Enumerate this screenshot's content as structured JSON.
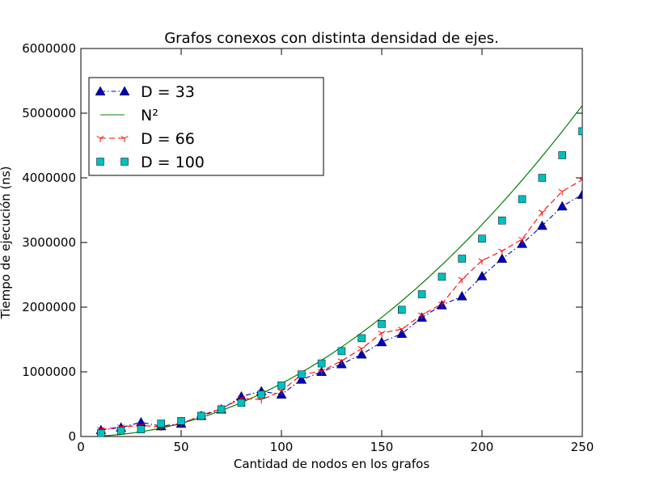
{
  "chart_data": {
    "type": "line",
    "title": "Grafos conexos  con distinta densidad de ejes.",
    "xlabel": "Cantidad de nodos en los grafos",
    "ylabel": "Tiempo de ejecución (ns)",
    "xlim": [
      0,
      250
    ],
    "ylim": [
      0,
      6000000
    ],
    "xticks": [
      0,
      50,
      100,
      150,
      200,
      250
    ],
    "yticks": [
      0,
      1000000,
      2000000,
      3000000,
      4000000,
      5000000,
      6000000
    ],
    "grid": false,
    "legend_position": "top-left",
    "x": [
      10,
      20,
      30,
      40,
      50,
      60,
      70,
      80,
      90,
      100,
      110,
      120,
      130,
      140,
      150,
      160,
      170,
      180,
      190,
      200,
      210,
      220,
      230,
      240,
      250
    ],
    "series": [
      {
        "name": "D = 33",
        "style": "dash-dot",
        "marker": "triangle",
        "color": "#0000bf",
        "values": [
          100000,
          140000,
          220000,
          160000,
          200000,
          320000,
          420000,
          620000,
          700000,
          650000,
          880000,
          1000000,
          1120000,
          1270000,
          1460000,
          1590000,
          1840000,
          2030000,
          2170000,
          2480000,
          2750000,
          2980000,
          3260000,
          3560000,
          3740000
        ]
      },
      {
        "name": "N²",
        "style": "solid",
        "marker": "none",
        "color": "#008000",
        "function": "0.08192 * x^2 + 0.0001 * ... approx: y = 81.92 * x^2"
      },
      {
        "name": "D = 66",
        "style": "dashed",
        "marker": "tri_down",
        "color": "#ff0000",
        "values": [
          110000,
          150000,
          170000,
          150000,
          190000,
          330000,
          430000,
          590000,
          570000,
          700000,
          960000,
          1010000,
          1170000,
          1360000,
          1600000,
          1660000,
          1880000,
          2050000,
          2430000,
          2720000,
          2870000,
          3050000,
          3470000,
          3790000,
          3970000
        ]
      },
      {
        "name": "D = 100",
        "style": "none",
        "marker": "square",
        "color": "#00bfbf",
        "values": [
          50000,
          90000,
          110000,
          200000,
          240000,
          320000,
          420000,
          520000,
          650000,
          790000,
          960000,
          1130000,
          1320000,
          1520000,
          1740000,
          1960000,
          2200000,
          2470000,
          2750000,
          3060000,
          3340000,
          3670000,
          4000000,
          4350000,
          4720000
        ]
      }
    ]
  }
}
